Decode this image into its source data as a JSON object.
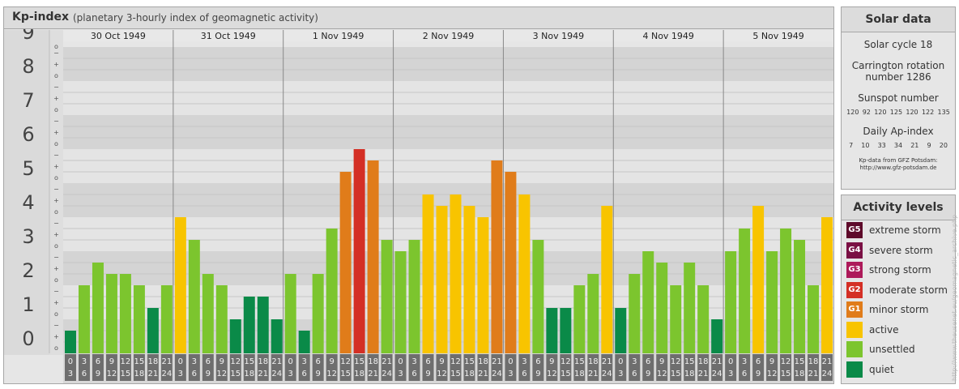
{
  "header": {
    "title": "Kp-index",
    "subtitle": "(planetary 3-hourly index of geomagnetic activity)"
  },
  "chart_data": {
    "type": "bar",
    "ylim": [
      0,
      9
    ],
    "y_ticks": [
      "0",
      "1",
      "2",
      "3",
      "4",
      "5",
      "6",
      "7",
      "8",
      "9"
    ],
    "sub_ticks": [
      "+",
      "o",
      "−"
    ],
    "days": [
      "30 Oct 1949",
      "31 Oct 1949",
      "1 Nov 1949",
      "2 Nov 1949",
      "3 Nov 1949",
      "4 Nov 1949",
      "5 Nov 1949"
    ],
    "interval_starts": [
      "0",
      "3",
      "6",
      "9",
      "12",
      "15",
      "18",
      "21"
    ],
    "interval_ends": [
      "3",
      "6",
      "9",
      "12",
      "15",
      "18",
      "21",
      "24"
    ],
    "values": [
      0.667,
      2.0,
      2.667,
      2.333,
      2.333,
      2.0,
      1.333,
      2.0,
      4.0,
      3.333,
      2.333,
      2.0,
      1.0,
      1.667,
      1.667,
      1.0,
      2.333,
      0.667,
      2.333,
      3.667,
      5.333,
      6.0,
      5.667,
      3.333,
      3.0,
      3.333,
      4.667,
      4.333,
      4.667,
      4.333,
      4.0,
      5.667,
      5.333,
      4.667,
      3.333,
      1.333,
      1.333,
      2.0,
      2.333,
      4.333,
      1.333,
      2.333,
      3.0,
      2.667,
      2.0,
      2.667,
      2.0,
      1.0,
      3.0,
      3.667,
      4.333,
      3.0,
      3.667,
      3.333,
      2.0,
      4.0
    ],
    "grid": true
  },
  "solar": {
    "heading": "Solar data",
    "cycle": "Solar cycle 18",
    "carrington_line1": "Carrington rotation",
    "carrington_line2": "number 1286",
    "sunspot_heading": "Sunspot number",
    "sunspots": [
      "120",
      "92",
      "120",
      "125",
      "120",
      "122",
      "135"
    ],
    "ap_heading": "Daily Ap-index",
    "ap": [
      "7",
      "10",
      "33",
      "34",
      "21",
      "9",
      "20"
    ],
    "credit1": "Kp-data from GFZ Potsdam:",
    "credit2": "http://www.gfz-potsdam.de"
  },
  "activity": {
    "heading": "Activity levels",
    "levels": [
      {
        "badge": "G5",
        "label": "extreme storm",
        "color": "#5e0a2a"
      },
      {
        "badge": "G4",
        "label": "severe storm",
        "color": "#7a1044"
      },
      {
        "badge": "G3",
        "label": "strong storm",
        "color": "#ad1a5a"
      },
      {
        "badge": "G2",
        "label": "moderate storm",
        "color": "#d42f25"
      },
      {
        "badge": "G1",
        "label": "minor storm",
        "color": "#e07c1a"
      },
      {
        "badge": "",
        "label": "active",
        "color": "#f8c400"
      },
      {
        "badge": "",
        "label": "unsettled",
        "color": "#7cc52e"
      },
      {
        "badge": "",
        "label": "quiet",
        "color": "#0a8a48"
      }
    ]
  },
  "watermark": "http://www.theusenet.eu/geomagnetic_archive.php"
}
